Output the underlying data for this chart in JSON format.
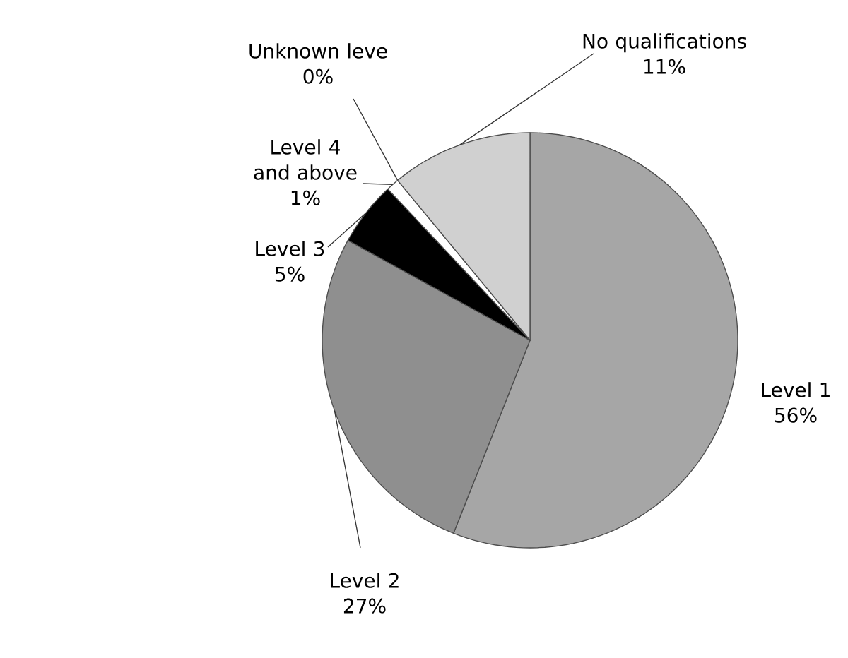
{
  "chart_data": {
    "type": "pie",
    "categories": [
      "Level 1",
      "Level 2",
      "Level 3",
      "Level 4 and above",
      "Unknown leve",
      "No qualifications"
    ],
    "values": [
      56,
      27,
      5,
      1,
      0,
      11
    ],
    "value_labels": [
      "56%",
      "27%",
      "5%",
      "1%",
      "0%",
      "11%"
    ],
    "colors": [
      "#a6a6a6",
      "#8f8f8f",
      "#000000",
      "#ffffff",
      "#ffffff",
      "#d0d0d0"
    ]
  }
}
